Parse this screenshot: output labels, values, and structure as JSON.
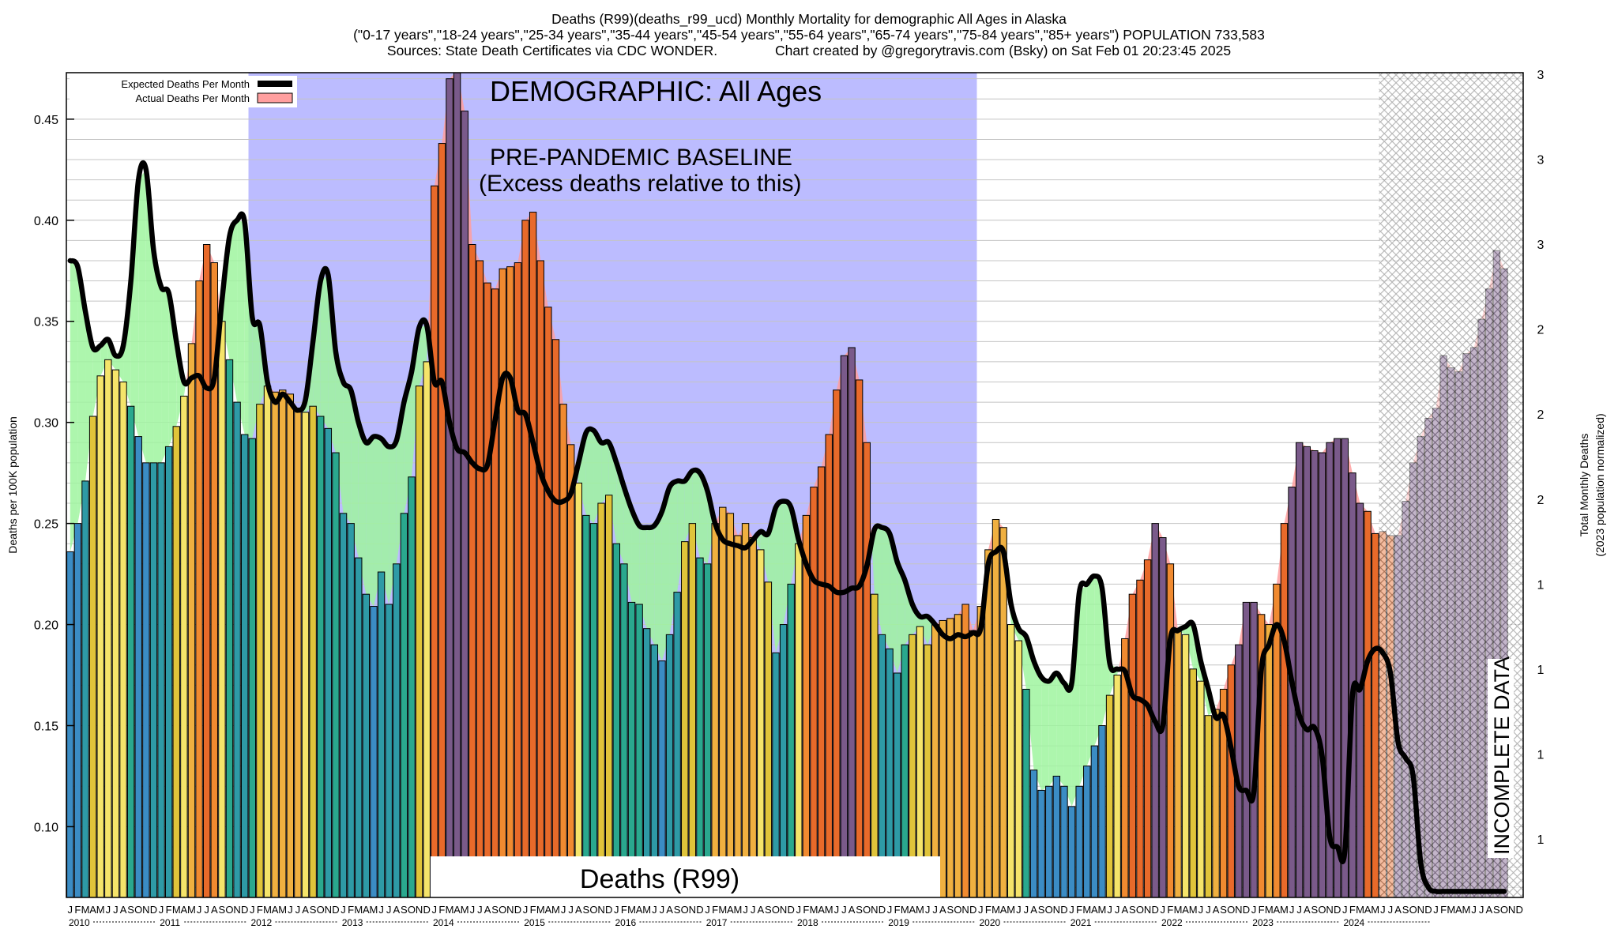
{
  "header": {
    "title_line1": "Deaths (R99)(deaths_r99_ucd) Monthly Mortality for demographic All Ages in Alaska",
    "title_line2": "(\"0-17 years\",\"18-24 years\",\"25-34 years\",\"35-44 years\",\"45-54 years\",\"55-64 years\",\"65-74 years\",\"75-84 years\",\"85+ years\") POPULATION 733,583",
    "title_line3": "Sources: State Death Certificates via CDC WONDER.               Chart created by @gregorytravis.com (Bsky) on Sat Feb 01 20:23:45 2025"
  },
  "colors": {
    "baseline_region": "#bcbcff",
    "excess_fill": "#ff9f9f",
    "deficit_fill": "#9ff59f",
    "expected_line": "#000000",
    "incomplete_hatch": "#9a9a9a",
    "bar_palette": [
      "#3b8cc4",
      "#2e9aa6",
      "#2aa88e",
      "#66b87a",
      "#e0c43a",
      "#f5e46a",
      "#f0b040",
      "#f08a30",
      "#e86a2a",
      "#7a5a8a",
      "#5a6a6a"
    ]
  },
  "chart_data": {
    "type": "bar",
    "title": "Deaths (R99)(deaths_r99_ucd) Monthly Mortality for demographic All Ages in Alaska",
    "xlabel": "",
    "ylabel": "Deaths per 100K population",
    "ylabel_right": "Total Monthly Deaths",
    "ylabel_right_sub": "(2023 population normalized)",
    "ylim": [
      0.065,
      0.473
    ],
    "y_ticks": [
      "0.10",
      "0.15",
      "0.20",
      "0.25",
      "0.30",
      "0.35",
      "0.40",
      "0.45"
    ],
    "right_ticks": [
      "1",
      "1",
      "1",
      "1",
      "2",
      "2",
      "2",
      "3",
      "3",
      "3"
    ],
    "x_start": "2010-01",
    "x_end": "2024-12",
    "month_letters": [
      "J",
      "F",
      "M",
      "A",
      "M",
      "J",
      "J",
      "A",
      "S",
      "O",
      "N",
      "D"
    ],
    "year_labels": [
      "2010",
      "2011",
      "2012",
      "2013",
      "2014",
      "2015",
      "2016",
      "2017",
      "2018",
      "2019",
      "2020",
      "2021",
      "2022",
      "2023",
      "2024"
    ],
    "baseline_span": [
      "2012-01",
      "2019-12"
    ],
    "incomplete_from": "2024-06",
    "legend": [
      "Expected Deaths Per Month",
      "Actual Deaths Per Month"
    ],
    "annotations": {
      "demographic": "DEMOGRAPHIC: All Ages",
      "baseline_line1": "PRE-PANDEMIC BASELINE",
      "baseline_line2": "(Excess deaths relative to this)",
      "cause_label": "Deaths (R99)",
      "incomplete": "INCOMPLETE DATA"
    },
    "series": [
      {
        "name": "Actual Deaths Per Month",
        "values": [
          0.236,
          0.25,
          0.271,
          0.303,
          0.323,
          0.331,
          0.326,
          0.32,
          0.308,
          0.293,
          0.28,
          0.28,
          0.28,
          0.288,
          0.298,
          0.313,
          0.339,
          0.37,
          0.388,
          0.379,
          0.35,
          0.331,
          0.31,
          0.294,
          0.292,
          0.309,
          0.318,
          0.315,
          0.316,
          0.314,
          0.306,
          0.305,
          0.308,
          0.303,
          0.297,
          0.285,
          0.255,
          0.25,
          0.233,
          0.215,
          0.209,
          0.226,
          0.21,
          0.23,
          0.255,
          0.273,
          0.318,
          0.33,
          0.417,
          0.438,
          0.47,
          0.474,
          0.454,
          0.388,
          0.38,
          0.369,
          0.366,
          0.376,
          0.377,
          0.379,
          0.4,
          0.404,
          0.38,
          0.357,
          0.341,
          0.309,
          0.289,
          0.27,
          0.254,
          0.25,
          0.26,
          0.264,
          0.24,
          0.23,
          0.211,
          0.21,
          0.198,
          0.19,
          0.182,
          0.195,
          0.216,
          0.241,
          0.25,
          0.233,
          0.23,
          0.25,
          0.258,
          0.255,
          0.244,
          0.25,
          0.243,
          0.237,
          0.221,
          0.186,
          0.2,
          0.22,
          0.24,
          0.254,
          0.268,
          0.278,
          0.294,
          0.316,
          0.333,
          0.337,
          0.321,
          0.29,
          0.215,
          0.195,
          0.188,
          0.176,
          0.19,
          0.195,
          0.199,
          0.19,
          0.2,
          0.202,
          0.203,
          0.205,
          0.21,
          0.197,
          0.209,
          0.237,
          0.252,
          0.248,
          0.2,
          0.192,
          0.168,
          0.128,
          0.118,
          0.12,
          0.125,
          0.12,
          0.11,
          0.12,
          0.13,
          0.14,
          0.15,
          0.165,
          0.175,
          0.193,
          0.215,
          0.222,
          0.232,
          0.25,
          0.243,
          0.23,
          0.197,
          0.195,
          0.178,
          0.172,
          0.155,
          0.158,
          0.168,
          0.18,
          0.19,
          0.211,
          0.211,
          0.205,
          0.2,
          0.22,
          0.25,
          0.268,
          0.29,
          0.288,
          0.286,
          0.285,
          0.29,
          0.292,
          0.292,
          0.275,
          0.26,
          0.256,
          0.245,
          0.246,
          0.244,
          0.244,
          0.261,
          0.28,
          0.293,
          0.302,
          0.307,
          0.333,
          0.327,
          0.325,
          0.334,
          0.337,
          0.351,
          0.366,
          0.385,
          0.376,
          null,
          null
        ]
      },
      {
        "name": "Expected Deaths Per Month",
        "values": [
          0.38,
          0.377,
          0.355,
          0.337,
          0.338,
          0.341,
          0.333,
          0.338,
          0.37,
          0.42,
          0.425,
          0.385,
          0.367,
          0.364,
          0.34,
          0.32,
          0.322,
          0.323,
          0.317,
          0.322,
          0.36,
          0.392,
          0.4,
          0.399,
          0.352,
          0.348,
          0.32,
          0.31,
          0.314,
          0.31,
          0.306,
          0.311,
          0.34,
          0.37,
          0.373,
          0.335,
          0.32,
          0.316,
          0.3,
          0.29,
          0.293,
          0.292,
          0.288,
          0.291,
          0.31,
          0.325,
          0.347,
          0.348,
          0.32,
          0.32,
          0.3,
          0.287,
          0.285,
          0.28,
          0.277,
          0.279,
          0.301,
          0.322,
          0.322,
          0.306,
          0.304,
          0.29,
          0.275,
          0.266,
          0.261,
          0.261,
          0.265,
          0.28,
          0.295,
          0.296,
          0.29,
          0.29,
          0.28,
          0.268,
          0.257,
          0.249,
          0.248,
          0.249,
          0.256,
          0.268,
          0.271,
          0.271,
          0.276,
          0.275,
          0.266,
          0.25,
          0.242,
          0.24,
          0.239,
          0.238,
          0.242,
          0.246,
          0.245,
          0.258,
          0.261,
          0.258,
          0.242,
          0.23,
          0.222,
          0.22,
          0.219,
          0.216,
          0.216,
          0.218,
          0.219,
          0.229,
          0.247,
          0.248,
          0.245,
          0.231,
          0.222,
          0.21,
          0.204,
          0.204,
          0.2,
          0.195,
          0.193,
          0.195,
          0.194,
          0.196,
          0.198,
          0.23,
          0.236,
          0.236,
          0.21,
          0.198,
          0.194,
          0.182,
          0.174,
          0.172,
          0.176,
          0.171,
          0.171,
          0.216,
          0.22,
          0.224,
          0.218,
          0.181,
          0.178,
          0.177,
          0.165,
          0.163,
          0.16,
          0.152,
          0.15,
          0.193,
          0.197,
          0.199,
          0.2,
          0.182,
          0.168,
          0.154,
          0.155,
          0.139,
          0.12,
          0.118,
          0.117,
          0.178,
          0.19,
          0.2,
          0.192,
          0.172,
          0.155,
          0.148,
          0.149,
          0.135,
          0.095,
          0.09,
          0.088,
          0.165,
          0.168,
          0.182,
          0.188,
          0.186,
          0.176,
          0.142,
          0.134,
          0.125,
          0.082,
          0.07,
          0.068,
          0.068,
          0.068,
          0.068,
          0.068,
          0.068,
          0.068,
          0.068,
          0.068,
          0.068,
          null,
          null
        ]
      }
    ]
  }
}
